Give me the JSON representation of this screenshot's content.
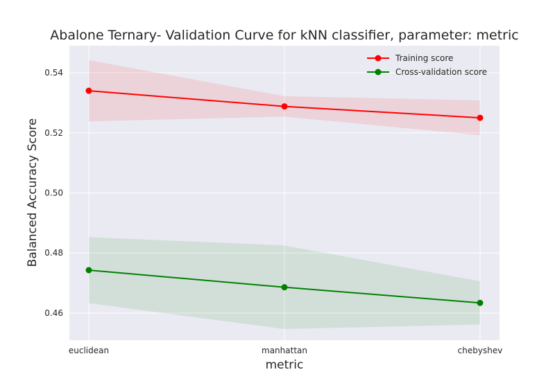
{
  "chart_data": {
    "type": "line",
    "title": "Abalone Ternary- Validation Curve for kNN classifier, parameter: metric",
    "xlabel": "metric",
    "ylabel": "Balanced Accuracy Score",
    "categories": [
      "euclidean",
      "manhattan",
      "chebyshev"
    ],
    "ylim": [
      0.451,
      0.549
    ],
    "yticks": [
      0.46,
      0.48,
      0.5,
      0.52,
      0.54
    ],
    "ytick_labels": [
      "0.46",
      "0.48",
      "0.50",
      "0.52",
      "0.54"
    ],
    "grid": true,
    "legend_position": "top-right",
    "series": [
      {
        "name": "Training score",
        "color": "#ff0000",
        "values": [
          0.534,
          0.5288,
          0.525
        ],
        "lower": [
          0.5238,
          0.5254,
          0.5192
        ],
        "upper": [
          0.5442,
          0.5322,
          0.5308
        ]
      },
      {
        "name": "Cross-validation score",
        "color": "#008000",
        "values": [
          0.4743,
          0.4686,
          0.4634
        ],
        "lower": [
          0.4633,
          0.4547,
          0.4562
        ],
        "upper": [
          0.4853,
          0.4825,
          0.4706
        ]
      }
    ]
  }
}
